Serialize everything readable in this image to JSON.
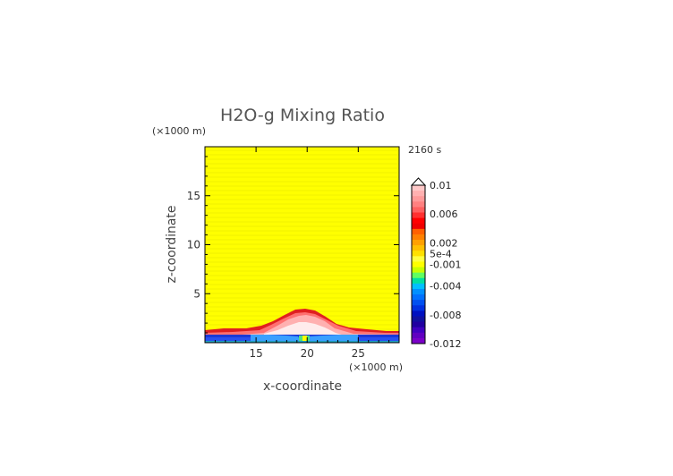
{
  "chart_data": {
    "type": "heatmap",
    "title": "H2O-g Mixing Ratio",
    "time_label": "2160 s",
    "xlabel": "x-coordinate",
    "ylabel": "z-coordinate",
    "x_unit": "(×1000 m)",
    "y_unit": "(×1000 m)",
    "xlim": [
      10,
      29
    ],
    "ylim": [
      0,
      20
    ],
    "x_ticks": [
      "15",
      "20",
      "25"
    ],
    "y_ticks": [
      "5",
      "10",
      "15"
    ],
    "colorbar_labels": [
      "0.01",
      "0.006",
      "0.002",
      "5e-4",
      "-0.001",
      "-0.004",
      "-0.008",
      "-0.012"
    ],
    "colorbar_range": [
      -0.012,
      0.01
    ],
    "field": {
      "background_value": 0.0006,
      "surface_value": -0.006,
      "plume_peak_value": 0.01,
      "plume_top_height": 3.1,
      "plume_center_x": 20
    }
  },
  "colors": {
    "background": "#ffff00",
    "stripe": "#f0f000"
  }
}
